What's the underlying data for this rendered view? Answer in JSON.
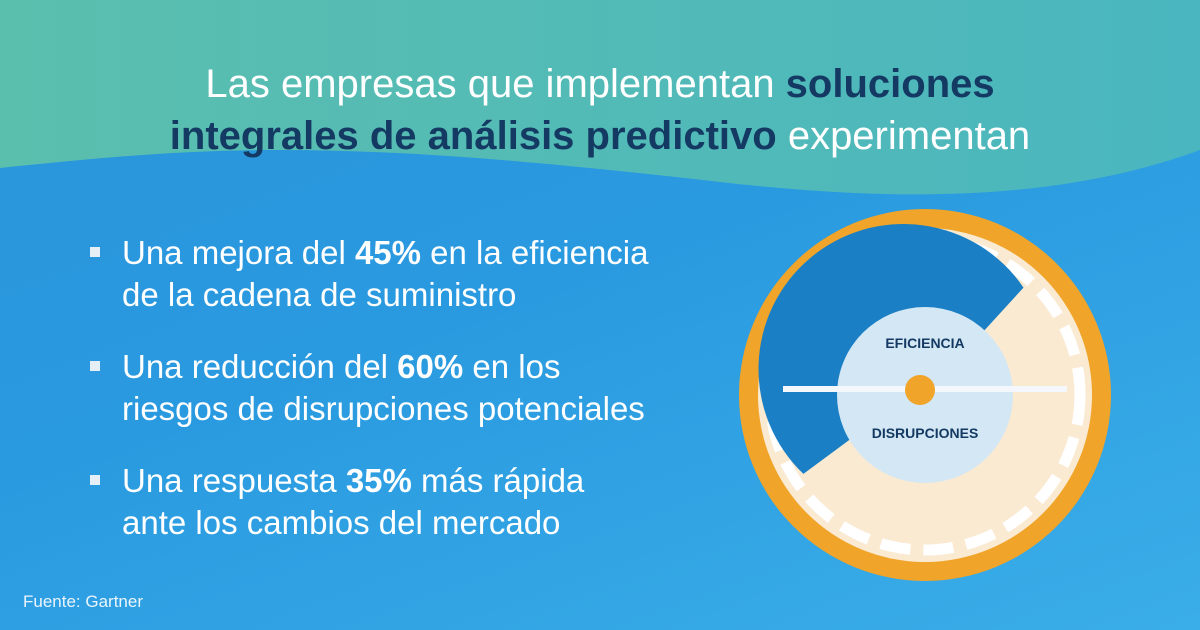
{
  "headline": {
    "part1": "Las empresas que implementan ",
    "bold1": "soluciones",
    "bold2": "integrales de análisis predictivo",
    "part2": " experimentan"
  },
  "bullets": [
    {
      "before": "Una mejora del ",
      "value": "45%",
      "after": " en la eficiencia",
      "line2": "de la cadena de suministro"
    },
    {
      "before": "Una reducción del ",
      "value": "60%",
      "after": " en los",
      "line2": "riesgos de disrupciones potenciales"
    },
    {
      "before": "Una respuesta ",
      "value": "35%",
      "after": " más rápida",
      "line2": "ante los cambios del mercado"
    }
  ],
  "source": "Fuente: Gartner",
  "gauge": {
    "top_label": "EFICIENCIA",
    "bottom_label": "DISRUPCIONES"
  },
  "colors": {
    "background": "#2a93d9",
    "wave": "#5cbfb0",
    "headline_emphasis": "#143a63",
    "gauge_ring": "#f0a42a",
    "gauge_arc": "#1a7fc4",
    "gauge_fill": "#fbead2",
    "gauge_center": "#d3e7f4"
  }
}
